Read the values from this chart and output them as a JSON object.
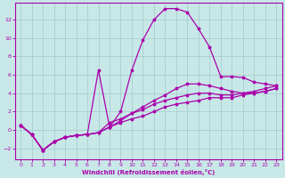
{
  "xlabel": "Windchill (Refroidissement éolien,°C)",
  "background_color": "#c8e8e8",
  "grid_color": "#a8cece",
  "line_color": "#aa00aa",
  "xlim": [
    -0.5,
    23.5
  ],
  "ylim": [
    -3.2,
    13.8
  ],
  "yticks": [
    -2,
    0,
    2,
    4,
    6,
    8,
    10,
    12
  ],
  "xticks": [
    0,
    1,
    2,
    3,
    4,
    5,
    6,
    7,
    8,
    9,
    10,
    11,
    12,
    13,
    14,
    15,
    16,
    17,
    18,
    19,
    20,
    21,
    22,
    23
  ],
  "series": [
    {
      "x": [
        0,
        1,
        2,
        3,
        4,
        5,
        6,
        7,
        8,
        9,
        10,
        11,
        12,
        13,
        14,
        15,
        16,
        17,
        18,
        19,
        20,
        21,
        22,
        23
      ],
      "y": [
        0.5,
        -0.5,
        -2.2,
        -1.3,
        -0.8,
        -0.6,
        -0.5,
        -0.3,
        0.3,
        2.0,
        6.5,
        9.8,
        12.0,
        13.2,
        13.2,
        12.8,
        11.0,
        9.0,
        5.8,
        5.8,
        5.7,
        5.2,
        5.0,
        4.8
      ]
    },
    {
      "x": [
        0,
        1,
        2,
        3,
        4,
        5,
        6,
        7,
        8,
        9,
        10,
        11,
        12,
        13,
        14,
        15,
        16,
        17,
        18,
        19,
        20,
        21,
        22,
        23
      ],
      "y": [
        0.5,
        -0.5,
        -2.2,
        -1.3,
        -0.8,
        -0.6,
        -0.5,
        6.5,
        0.3,
        1.0,
        1.8,
        2.5,
        3.2,
        3.8,
        4.5,
        5.0,
        5.0,
        4.8,
        4.5,
        4.2,
        4.0,
        4.0,
        4.2,
        4.5
      ]
    },
    {
      "x": [
        0,
        1,
        2,
        3,
        4,
        5,
        6,
        7,
        8,
        9,
        10,
        11,
        12,
        13,
        14,
        15,
        16,
        17,
        18,
        19,
        20,
        21,
        22,
        23
      ],
      "y": [
        0.5,
        -0.5,
        -2.2,
        -1.3,
        -0.8,
        -0.6,
        -0.5,
        -0.3,
        0.8,
        1.2,
        1.8,
        2.2,
        2.8,
        3.2,
        3.5,
        3.8,
        4.0,
        4.0,
        3.8,
        3.8,
        4.0,
        4.2,
        4.5,
        4.8
      ]
    },
    {
      "x": [
        0,
        1,
        2,
        3,
        4,
        5,
        6,
        7,
        8,
        9,
        10,
        11,
        12,
        13,
        14,
        15,
        16,
        17,
        18,
        19,
        20,
        21,
        22,
        23
      ],
      "y": [
        0.5,
        -0.5,
        -2.2,
        -1.3,
        -0.8,
        -0.6,
        -0.5,
        -0.3,
        0.3,
        0.8,
        1.2,
        1.5,
        2.0,
        2.5,
        2.8,
        3.0,
        3.2,
        3.5,
        3.5,
        3.5,
        3.8,
        4.0,
        4.2,
        4.5
      ]
    }
  ]
}
